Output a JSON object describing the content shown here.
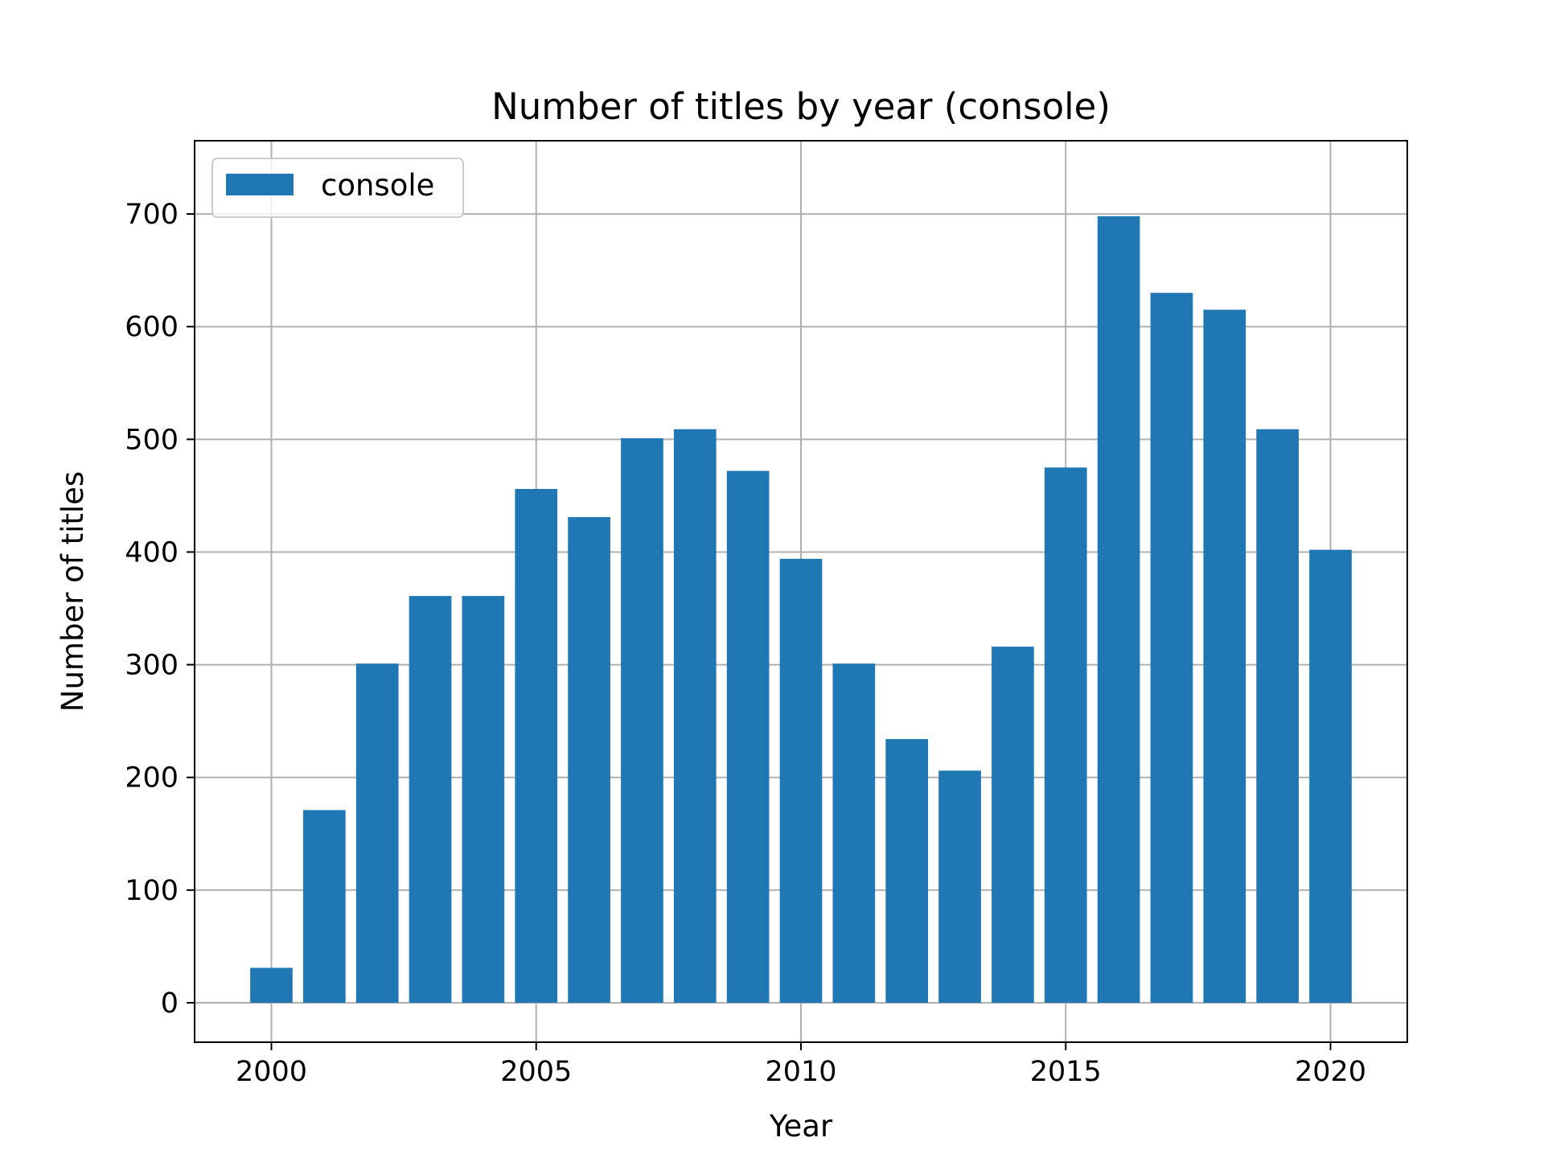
{
  "chart_data": {
    "type": "bar",
    "title": "Number of titles by year (console)",
    "xlabel": "Year",
    "ylabel": "Number of titles",
    "x": [
      2000,
      2001,
      2002,
      2003,
      2004,
      2005,
      2006,
      2007,
      2008,
      2009,
      2010,
      2011,
      2012,
      2013,
      2014,
      2015,
      2016,
      2017,
      2018,
      2019,
      2020
    ],
    "series": [
      {
        "name": "console",
        "color": "#1f77b4",
        "values": [
          31,
          171,
          301,
          361,
          361,
          456,
          431,
          501,
          509,
          472,
          394,
          301,
          234,
          206,
          316,
          475,
          698,
          630,
          615,
          509,
          402
        ]
      }
    ],
    "xticks": [
      2000,
      2005,
      2010,
      2015,
      2020
    ],
    "yticks": [
      0,
      100,
      200,
      300,
      400,
      500,
      600,
      700
    ],
    "xlim": [
      1998.55,
      2021.45
    ],
    "ylim": [
      -35,
      765
    ],
    "grid": true,
    "legend_position": "top-left",
    "colors": {
      "bar": "#1f77b4",
      "grid": "#b0b0b0",
      "axis": "#000000"
    }
  }
}
